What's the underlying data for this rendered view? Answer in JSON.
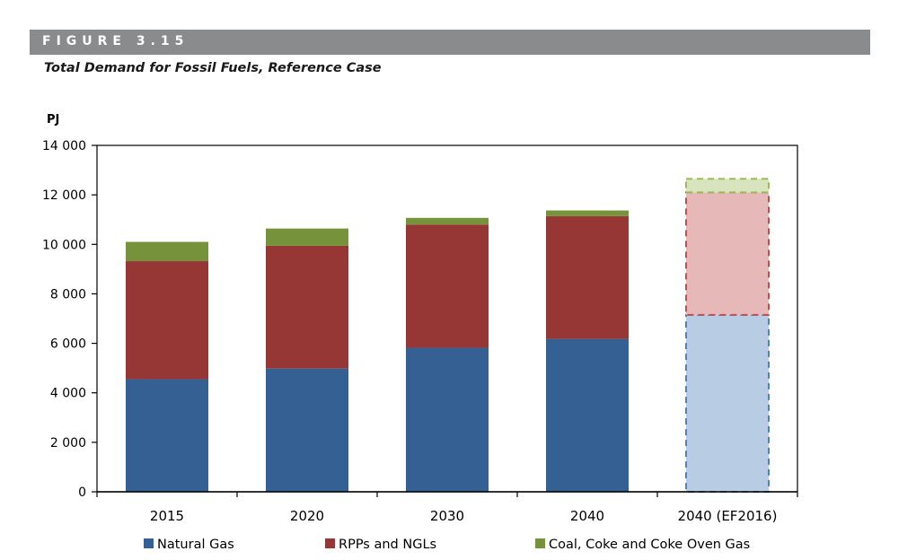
{
  "header": {
    "figure_label": "FIGURE 3.15",
    "title": "Total Demand for Fossil Fuels, Reference Case"
  },
  "chart_data": {
    "type": "bar",
    "stacked": true,
    "ylabel": "PJ",
    "ylim": [
      0,
      14000
    ],
    "y_ticks": [
      "0",
      "2 000",
      "4 000",
      "6 000",
      "8 000",
      "10 000",
      "12 000",
      "14 000"
    ],
    "y_tick_values": [
      0,
      2000,
      4000,
      6000,
      8000,
      10000,
      12000,
      14000
    ],
    "categories": [
      "2015",
      "2020",
      "2030",
      "2040",
      "2040 (EF2016)"
    ],
    "series": [
      {
        "name": "Natural Gas",
        "color": "#356093",
        "values": [
          4550,
          4980,
          5820,
          6180,
          7150
        ]
      },
      {
        "name": "RPPs and NGLs",
        "color": "#963735",
        "values": [
          4770,
          4960,
          4980,
          4960,
          4950
        ]
      },
      {
        "name": "Coal, Coke and Coke Oven Gas",
        "color": "#76933c",
        "values": [
          780,
          700,
          270,
          230,
          550
        ]
      }
    ],
    "dashed_categories": [
      "2040 (EF2016)"
    ],
    "dashed_fill_colors": [
      "#b8cce4",
      "#e6b9b8",
      "#d7e4bd"
    ],
    "dashed_stroke_colors": [
      "#4f81bd",
      "#c0504d",
      "#9bbb59"
    ],
    "grid": false,
    "legend_position": "bottom"
  }
}
